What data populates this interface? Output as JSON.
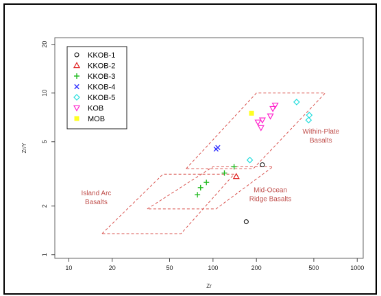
{
  "chart_data": {
    "type": "scatter",
    "title": "",
    "xlabel": "Zr",
    "ylabel": "Zr/Y",
    "xscale": "log",
    "yscale": "log",
    "xlim": [
      8,
      1100
    ],
    "ylim": [
      0.95,
      22
    ],
    "xticks": [
      10,
      20,
      50,
      100,
      200,
      500,
      1000
    ],
    "xtick_labels": [
      "10",
      "20",
      "50",
      "100",
      "200",
      "500",
      "1000"
    ],
    "yticks": [
      1,
      2,
      5,
      10,
      20
    ],
    "ytick_labels": [
      "1",
      "2",
      "5",
      "10",
      "20"
    ],
    "grid": false,
    "legend_position": "top-left",
    "series": [
      {
        "name": "KKOB-1",
        "marker": "circle",
        "color": "#000000",
        "points": [
          [
            170,
            1.6
          ],
          [
            220,
            3.6
          ]
        ]
      },
      {
        "name": "KKOB-2",
        "marker": "triangle-up",
        "color": "#e02020",
        "points": [
          [
            145,
            3.05
          ]
        ]
      },
      {
        "name": "KKOB-3",
        "marker": "plus",
        "color": "#22bb22",
        "points": [
          [
            78,
            2.35
          ],
          [
            82,
            2.6
          ],
          [
            90,
            2.8
          ],
          [
            120,
            3.2
          ],
          [
            140,
            3.5
          ]
        ]
      },
      {
        "name": "KKOB-4",
        "marker": "x",
        "color": "#3030ff",
        "points": [
          [
            105,
            4.5
          ],
          [
            108,
            4.6
          ]
        ]
      },
      {
        "name": "KKOB-5",
        "marker": "diamond",
        "color": "#22dddd",
        "points": [
          [
            180,
            3.85
          ],
          [
            380,
            8.8
          ],
          [
            460,
            6.8
          ],
          [
            465,
            7.3
          ]
        ]
      },
      {
        "name": "KOB",
        "marker": "triangle-down",
        "color": "#ff22cc",
        "points": [
          [
            205,
            6.6
          ],
          [
            215,
            6.1
          ],
          [
            220,
            6.8
          ],
          [
            250,
            7.2
          ],
          [
            260,
            8.0
          ],
          [
            270,
            8.4
          ]
        ]
      },
      {
        "name": "MOB",
        "marker": "square",
        "color": "#ffff22",
        "points": [
          [
            185,
            7.5
          ]
        ]
      }
    ],
    "regions": [
      {
        "name": "Within-Plate Basalts",
        "line1": "Within-Plate",
        "line2": "Basalts",
        "label_at": [
          560,
          5.3
        ],
        "polygon": [
          [
            65,
            3.4
          ],
          [
            200,
            10
          ],
          [
            600,
            10
          ],
          [
            190,
            3.4
          ]
        ]
      },
      {
        "name": "Mid-Ocean Ridge Basalts",
        "line1": "Mid-Ocean",
        "line2": "Ridge Basalts",
        "label_at": [
          250,
          2.3
        ],
        "polygon": [
          [
            35,
            1.92
          ],
          [
            100,
            3.5
          ],
          [
            260,
            3.5
          ],
          [
            105,
            1.92
          ]
        ]
      },
      {
        "name": "Island Arc Basalts",
        "line1": "Island Arc",
        "line2": "Basalts",
        "label_at": [
          15.5,
          2.2
        ],
        "polygon": [
          [
            17,
            1.35
          ],
          [
            45,
            3.15
          ],
          [
            140,
            3.15
          ],
          [
            60,
            1.35
          ]
        ]
      }
    ]
  }
}
